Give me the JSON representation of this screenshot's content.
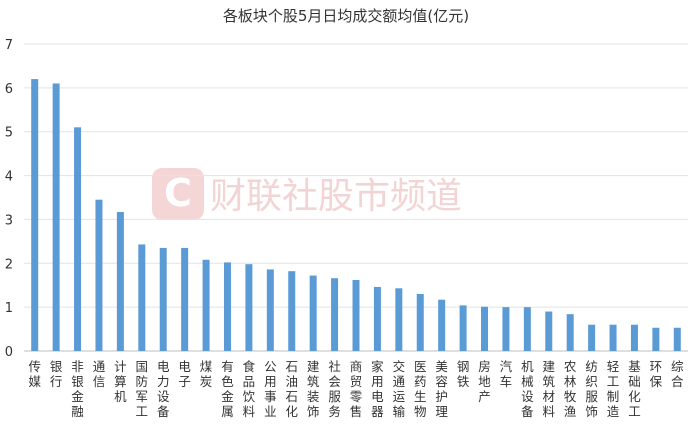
{
  "watermark": "财联社股市频道",
  "chart_data": {
    "type": "bar",
    "title": "各板块个股5月日均成交额均值(亿元)",
    "xlabel": "",
    "ylabel": "",
    "ylim": [
      0,
      7
    ],
    "yticks": [
      0,
      1,
      2,
      3,
      4,
      5,
      6,
      7
    ],
    "grid": "horizontal",
    "bar_color": "#5b9bd5",
    "categories": [
      "传媒",
      "银行",
      "非银金融",
      "通信",
      "计算机",
      "国防军工",
      "电力设备",
      "电子",
      "煤炭",
      "有色金属",
      "食品饮料",
      "公用事业",
      "石油石化",
      "建筑装饰",
      "社会服务",
      "商贸零售",
      "家用电器",
      "交通运输",
      "医药生物",
      "美容护理",
      "钢铁",
      "房地产",
      "汽车",
      "机械设备",
      "建筑材料",
      "农林牧渔",
      "纺织服饰",
      "轻工制造",
      "基础化工",
      "环保",
      "综合"
    ],
    "values": [
      6.2,
      6.1,
      5.1,
      3.45,
      3.17,
      2.43,
      2.35,
      2.35,
      2.08,
      2.02,
      1.98,
      1.86,
      1.82,
      1.72,
      1.66,
      1.62,
      1.46,
      1.43,
      1.3,
      1.17,
      1.04,
      1.01,
      1.0,
      1.0,
      0.9,
      0.84,
      0.6,
      0.6,
      0.6,
      0.53,
      0.53
    ]
  }
}
